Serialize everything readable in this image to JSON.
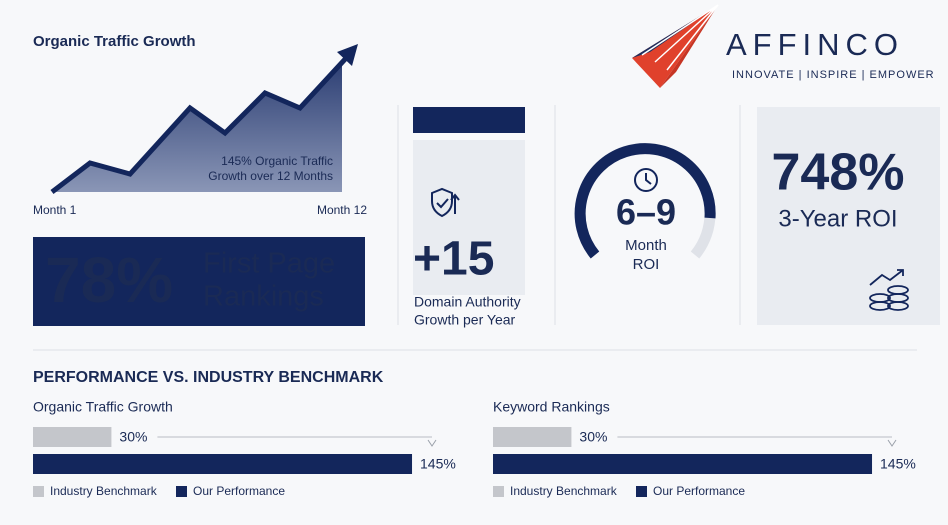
{
  "header": {
    "brand": "AFFINCO",
    "tagline": "INNOVATE | INSPIRE | EMPOWER"
  },
  "traffic": {
    "title": "Organic Traffic Growth",
    "annotation": [
      "145% Organic Traffic",
      "Growth over 12 Months"
    ],
    "start_label": "Month 1",
    "end_label": "Month 12"
  },
  "first_page": {
    "value": "78%",
    "label": [
      "First Page",
      "Rankings"
    ]
  },
  "domain_authority": {
    "value": "+15",
    "label": [
      "Domain Authority",
      "Growth per Year"
    ]
  },
  "roi_time": {
    "value": "6–9",
    "label": [
      "Month",
      "ROI"
    ]
  },
  "roi": {
    "value": "748%",
    "label": "3-Year ROI"
  },
  "benchmark_title": "PERFORMANCE VS. INDUSTRY BENCHMARK",
  "chart_data": [
    {
      "type": "hbar",
      "title": "Organic Traffic Growth",
      "series": [
        {
          "name": "Industry Benchmark",
          "color": "#c4c6cb",
          "values": [
            30
          ],
          "value_labels": [
            "30%"
          ]
        },
        {
          "name": "Our Performance",
          "color": "#13265c",
          "values": [
            145
          ],
          "value_labels": [
            "145%"
          ]
        }
      ]
    },
    {
      "type": "hbar",
      "title": "Keyword Rankings",
      "series": [
        {
          "name": "Industry Benchmark",
          "color": "#c4c6cb",
          "values": [
            30
          ],
          "value_labels": [
            "30%"
          ]
        },
        {
          "name": "Our Performance",
          "color": "#13265c",
          "values": [
            145
          ],
          "value_labels": [
            "145%"
          ]
        }
      ]
    }
  ]
}
